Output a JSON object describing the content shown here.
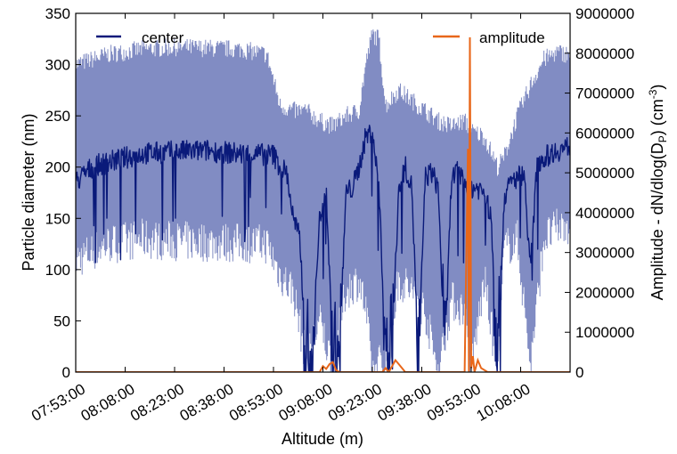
{
  "chart_data": {
    "type": "line",
    "title": "",
    "xlabel": "Altitude (m)",
    "ylabel_left": "Particle diameter (nm)",
    "ylabel_right_main": "Amplitude - dN/dlog(D",
    "ylabel_right_sub": "P",
    "ylabel_right_tail": ") (cm",
    "ylabel_right_sup": "-3",
    "ylabel_right_close": ")",
    "x_ticks": [
      "07:53:00",
      "08:08:00",
      "08:23:00",
      "08:38:00",
      "08:53:00",
      "09:08:00",
      "09:23:00",
      "09:38:00",
      "09:53:00",
      "10:08:00"
    ],
    "x_range_minutes": [
      0,
      150
    ],
    "y_left_ticks": [
      "0",
      "50",
      "100",
      "150",
      "200",
      "250",
      "300",
      "350"
    ],
    "y_left_range": [
      0,
      350
    ],
    "y_right_ticks": [
      "0",
      "1000000",
      "2000000",
      "3000000",
      "4000000",
      "5000000",
      "6000000",
      "7000000",
      "8000000",
      "9000000"
    ],
    "y_right_range": [
      0,
      9000000
    ],
    "legend": {
      "left_label": "center",
      "right_label": "amplitude",
      "placement_left": "top-left",
      "placement_right": "top-right"
    },
    "colors": {
      "center": "#0a1a7a",
      "band": "#6b78b8",
      "amplitude": "#e8671a"
    },
    "series": [
      {
        "name": "center",
        "axis": "left",
        "x_minutes": [
          0,
          5,
          10,
          20,
          30,
          40,
          50,
          60,
          62,
          64,
          66,
          68,
          70,
          72,
          74,
          76,
          78,
          80,
          82,
          84,
          86,
          88,
          90,
          92,
          94,
          96,
          98,
          100,
          102,
          104,
          106,
          108,
          110,
          112,
          114,
          116,
          118,
          120,
          122,
          124,
          126,
          128,
          130,
          132,
          134,
          136,
          138,
          140,
          145,
          150
        ],
        "values": [
          185,
          200,
          205,
          213,
          215,
          216,
          213,
          212,
          200,
          195,
          150,
          130,
          10,
          30,
          150,
          180,
          10,
          15,
          175,
          180,
          200,
          230,
          235,
          180,
          15,
          20,
          180,
          200,
          180,
          5,
          190,
          195,
          180,
          10,
          190,
          195,
          185,
          180,
          180,
          175,
          150,
          10,
          170,
          185,
          190,
          195,
          100,
          205,
          215,
          220
        ]
      },
      {
        "name": "band",
        "axis": "left",
        "x_minutes": [
          0,
          10,
          20,
          30,
          40,
          50,
          58,
          62,
          66,
          70,
          74,
          78,
          82,
          86,
          88,
          90,
          92,
          94,
          98,
          102,
          106,
          110,
          114,
          118,
          120,
          124,
          128,
          130,
          134,
          138,
          142,
          146,
          150
        ],
        "upper": [
          300,
          310,
          315,
          317,
          316,
          315,
          310,
          260,
          255,
          255,
          245,
          240,
          250,
          255,
          300,
          330,
          325,
          260,
          275,
          265,
          255,
          245,
          240,
          245,
          235,
          230,
          200,
          210,
          250,
          280,
          305,
          312,
          310
        ],
        "lower": [
          110,
          125,
          130,
          128,
          127,
          126,
          125,
          95,
          80,
          10,
          50,
          5,
          80,
          90,
          60,
          0,
          10,
          5,
          90,
          80,
          60,
          0,
          70,
          60,
          5,
          90,
          0,
          120,
          130,
          5,
          130,
          140,
          145
        ]
      },
      {
        "name": "amplitude",
        "axis": "right",
        "x_minutes": [
          0,
          74,
          75,
          76,
          77,
          78,
          79,
          80,
          93,
          94,
          95,
          96,
          97,
          98,
          99,
          100,
          115,
          118,
          119,
          119.3,
          119.6,
          120,
          120.5,
          121,
          122,
          123,
          125,
          150
        ],
        "values": [
          0,
          0,
          150000,
          80000,
          200000,
          250000,
          50000,
          0,
          0,
          100000,
          0,
          150000,
          300000,
          200000,
          100000,
          0,
          0,
          0,
          5600000,
          0,
          8400000,
          100000,
          400000,
          0,
          300000,
          100000,
          0,
          0
        ]
      }
    ],
    "grid": false
  }
}
